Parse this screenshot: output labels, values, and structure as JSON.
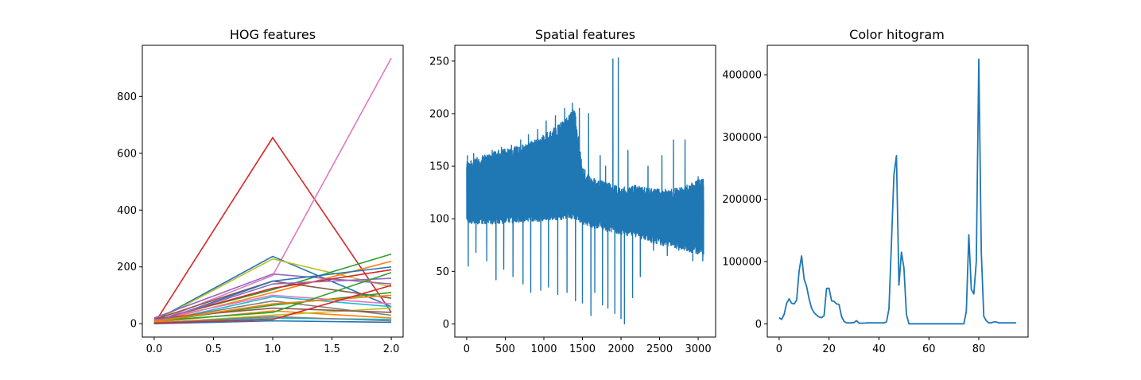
{
  "chart_data": [
    {
      "type": "line",
      "title": "HOG features",
      "xlabel": "",
      "ylabel": "",
      "xlim": [
        -0.1,
        2.1
      ],
      "ylim": [
        -47,
        980
      ],
      "x": [
        0,
        1,
        2
      ],
      "xticks": [
        0.0,
        0.5,
        1.0,
        1.5,
        2.0
      ],
      "xtick_labels": [
        "0.0",
        "0.5",
        "1.0",
        "1.5",
        "2.0"
      ],
      "yticks": [
        0,
        200,
        400,
        600,
        800
      ],
      "ytick_labels": [
        "0",
        "200",
        "400",
        "600",
        "800"
      ],
      "grid": false,
      "series": [
        {
          "color": "#d62728",
          "values": [
            0,
            655,
            40
          ]
        },
        {
          "color": "#e377c2",
          "values": [
            5,
            170,
            935
          ]
        },
        {
          "color": "#1f77b4",
          "values": [
            10,
            237,
            60
          ]
        },
        {
          "color": "#bcbd22",
          "values": [
            8,
            228,
            130
          ]
        },
        {
          "color": "#2ca02c",
          "values": [
            12,
            120,
            245
          ]
        },
        {
          "color": "#ff7f0e",
          "values": [
            6,
            110,
            220
          ]
        },
        {
          "color": "#9467bd",
          "values": [
            20,
            175,
            140
          ]
        },
        {
          "color": "#8c564b",
          "values": [
            15,
            150,
            90
          ]
        },
        {
          "color": "#17becf",
          "values": [
            4,
            95,
            60
          ]
        },
        {
          "color": "#7f7f7f",
          "values": [
            9,
            80,
            30
          ]
        },
        {
          "color": "#1f77b4",
          "values": [
            3,
            150,
            200
          ]
        },
        {
          "color": "#2ca02c",
          "values": [
            7,
            65,
            110
          ]
        },
        {
          "color": "#d62728",
          "values": [
            11,
            125,
            190
          ]
        },
        {
          "color": "#ff7f0e",
          "values": [
            5,
            45,
            20
          ]
        },
        {
          "color": "#bcbd22",
          "values": [
            2,
            30,
            55
          ]
        },
        {
          "color": "#e377c2",
          "values": [
            14,
            100,
            70
          ]
        },
        {
          "color": "#17becf",
          "values": [
            1,
            20,
            15
          ]
        },
        {
          "color": "#8c564b",
          "values": [
            18,
            55,
            40
          ]
        },
        {
          "color": "#9467bd",
          "values": [
            6,
            140,
            160
          ]
        },
        {
          "color": "#2ca02c",
          "values": [
            10,
            40,
            180
          ]
        },
        {
          "color": "#1f77b4",
          "values": [
            0,
            10,
            5
          ]
        },
        {
          "color": "#7f7f7f",
          "values": [
            3,
            25,
            10
          ]
        },
        {
          "color": "#ff7f0e",
          "values": [
            8,
            70,
            100
          ]
        },
        {
          "color": "#d62728",
          "values": [
            2,
            15,
            135
          ]
        }
      ]
    },
    {
      "type": "line",
      "title": "Spatial features",
      "xlabel": "",
      "ylabel": "",
      "xlim": [
        -154,
        3226
      ],
      "ylim": [
        -12.5,
        265
      ],
      "n_points": 3072,
      "xticks": [
        0,
        500,
        1000,
        1500,
        2000,
        2500,
        3000
      ],
      "xtick_labels": [
        "0",
        "500",
        "1000",
        "1500",
        "2000",
        "2500",
        "3000"
      ],
      "yticks": [
        0,
        50,
        100,
        150,
        200,
        250
      ],
      "ytick_labels": [
        "0",
        "50",
        "100",
        "150",
        "200",
        "250"
      ],
      "grid": false,
      "color": "#1f77b4",
      "envelope": {
        "x": [
          0,
          200,
          400,
          600,
          800,
          1000,
          1200,
          1400,
          1500,
          1600,
          1800,
          2000,
          2200,
          2500,
          2800,
          3071
        ],
        "upper": [
          155,
          160,
          165,
          168,
          172,
          180,
          190,
          205,
          150,
          140,
          135,
          130,
          132,
          128,
          130,
          140
        ],
        "lower": [
          95,
          95,
          95,
          96,
          97,
          98,
          99,
          100,
          95,
          92,
          88,
          85,
          82,
          75,
          70,
          65
        ]
      },
      "spikes": [
        {
          "x": 10,
          "value": 160
        },
        {
          "x": 20,
          "value": 55
        },
        {
          "x": 90,
          "value": 162
        },
        {
          "x": 120,
          "value": 68
        },
        {
          "x": 210,
          "value": 160
        },
        {
          "x": 260,
          "value": 60
        },
        {
          "x": 330,
          "value": 165
        },
        {
          "x": 380,
          "value": 42
        },
        {
          "x": 450,
          "value": 168
        },
        {
          "x": 480,
          "value": 52
        },
        {
          "x": 580,
          "value": 170
        },
        {
          "x": 600,
          "value": 45
        },
        {
          "x": 700,
          "value": 175
        },
        {
          "x": 730,
          "value": 38
        },
        {
          "x": 800,
          "value": 180
        },
        {
          "x": 830,
          "value": 30
        },
        {
          "x": 920,
          "value": 185
        },
        {
          "x": 960,
          "value": 32
        },
        {
          "x": 1030,
          "value": 193
        },
        {
          "x": 1060,
          "value": 35
        },
        {
          "x": 1150,
          "value": 198
        },
        {
          "x": 1180,
          "value": 28
        },
        {
          "x": 1270,
          "value": 205
        },
        {
          "x": 1300,
          "value": 30
        },
        {
          "x": 1370,
          "value": 210
        },
        {
          "x": 1410,
          "value": 22
        },
        {
          "x": 1460,
          "value": 205
        },
        {
          "x": 1500,
          "value": 20
        },
        {
          "x": 1580,
          "value": 200
        },
        {
          "x": 1610,
          "value": 8
        },
        {
          "x": 1660,
          "value": 30
        },
        {
          "x": 1730,
          "value": 160
        },
        {
          "x": 1760,
          "value": 18
        },
        {
          "x": 1800,
          "value": 150
        },
        {
          "x": 1830,
          "value": 15
        },
        {
          "x": 1895,
          "value": 252
        },
        {
          "x": 1920,
          "value": 10
        },
        {
          "x": 1965,
          "value": 253
        },
        {
          "x": 2000,
          "value": 5
        },
        {
          "x": 2045,
          "value": 0
        },
        {
          "x": 2090,
          "value": 165
        },
        {
          "x": 2150,
          "value": 25
        },
        {
          "x": 2250,
          "value": 45
        },
        {
          "x": 2350,
          "value": 150
        },
        {
          "x": 2420,
          "value": 70
        },
        {
          "x": 2530,
          "value": 160
        },
        {
          "x": 2600,
          "value": 65
        },
        {
          "x": 2680,
          "value": 175
        },
        {
          "x": 2750,
          "value": 70
        },
        {
          "x": 2830,
          "value": 175
        },
        {
          "x": 2930,
          "value": 60
        },
        {
          "x": 3000,
          "value": 140
        },
        {
          "x": 3060,
          "value": 60
        }
      ]
    },
    {
      "type": "line",
      "title": "Color hitogram",
      "xlabel": "",
      "ylabel": "",
      "xlim": [
        -4.75,
        99.75
      ],
      "ylim": [
        -21300,
        447300
      ],
      "xticks": [
        0,
        20,
        40,
        60,
        80
      ],
      "xtick_labels": [
        "0",
        "20",
        "40",
        "60",
        "80"
      ],
      "yticks": [
        0,
        100000,
        200000,
        300000,
        400000
      ],
      "ytick_labels": [
        "0",
        "100000",
        "200000",
        "300000",
        "400000"
      ],
      "grid": false,
      "color": "#1f77b4",
      "x": [
        0,
        1,
        2,
        3,
        4,
        5,
        6,
        7,
        8,
        9,
        10,
        11,
        12,
        13,
        14,
        15,
        16,
        17,
        18,
        19,
        20,
        21,
        22,
        23,
        24,
        25,
        26,
        27,
        28,
        29,
        30,
        31,
        32,
        33,
        34,
        35,
        36,
        37,
        38,
        39,
        40,
        41,
        42,
        43,
        44,
        45,
        46,
        47,
        48,
        49,
        50,
        51,
        52,
        53,
        54,
        55,
        56,
        57,
        58,
        59,
        60,
        61,
        62,
        63,
        64,
        65,
        66,
        67,
        68,
        69,
        70,
        71,
        72,
        73,
        74,
        75,
        76,
        77,
        78,
        79,
        80,
        81,
        82,
        83,
        84,
        85,
        86,
        87,
        88,
        89,
        90,
        91,
        92,
        93,
        94,
        95
      ],
      "values": [
        10000,
        7000,
        15000,
        33000,
        40000,
        33000,
        32000,
        38000,
        85000,
        109000,
        72000,
        60000,
        40000,
        25000,
        18000,
        14000,
        11000,
        10000,
        13000,
        57000,
        57000,
        37000,
        36000,
        32000,
        31000,
        12000,
        4000,
        1500,
        1500,
        1500,
        2000,
        5000,
        1000,
        1000,
        1000,
        1500,
        1500,
        1500,
        1500,
        1500,
        1500,
        1500,
        1500,
        3000,
        24000,
        130000,
        240000,
        270000,
        62000,
        115000,
        90000,
        15000,
        0,
        0,
        0,
        0,
        0,
        0,
        0,
        0,
        0,
        0,
        0,
        0,
        0,
        0,
        0,
        0,
        0,
        0,
        0,
        0,
        0,
        0,
        0,
        20000,
        143000,
        55000,
        48000,
        100000,
        425000,
        115000,
        12000,
        5000,
        1500,
        1500,
        3000,
        3000,
        1500,
        1500,
        1500,
        1500,
        1500,
        1500,
        1500,
        1500
      ]
    }
  ]
}
